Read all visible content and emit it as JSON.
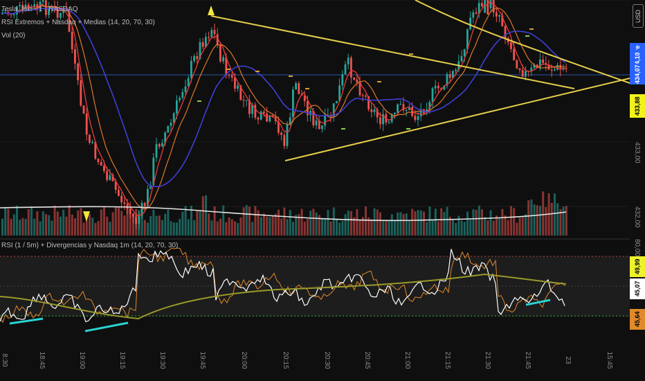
{
  "legends": {
    "symbol": "Tesla, Inc. · 1 · NASDAQ",
    "indicator": "RSI Extremos + Nasdaq + Medias (14, 20, 70, 30)",
    "volume": "Vol (20)",
    "rsi": "RSI (1 / 5m) + Divergencias y Nasdaq 1m (14, 20, 70, 30)"
  },
  "currency_button": "USD",
  "price_axis": {
    "labels": [
      "434,00",
      "433,00",
      "432,00"
    ],
    "tags": [
      {
        "text": "434,10",
        "bg": "#2962ff",
        "fg": "#ffffff"
      },
      {
        "text": "434,07",
        "bg": "#2962ff",
        "fg": "#ffffff"
      },
      {
        "text": "433,88",
        "bg": "#f2f21c",
        "fg": "#000000"
      }
    ],
    "pre_label": "Pre"
  },
  "rsi_axis": {
    "labels": [
      "80,00"
    ],
    "tags": [
      {
        "text": "49,99",
        "bg": "#eef22d",
        "fg": "#000000"
      },
      {
        "text": "45,07",
        "bg": "#ffffff",
        "fg": "#000000"
      },
      {
        "text": "45,64",
        "bg": "#e08a2a",
        "fg": "#000000"
      }
    ]
  },
  "time_axis": [
    "8:30",
    "18:45",
    "19:00",
    "19:15",
    "19:30",
    "19:45",
    "20:00",
    "20:15",
    "20:30",
    "20:45",
    "21:00",
    "21:15",
    "21:30",
    "21:45",
    "23",
    "15:45"
  ],
  "colors": {
    "up": "#26a69a",
    "down": "#ef5350",
    "trendline": "#e6cf4a",
    "ema_red": "#e03a3a",
    "ema_orange": "#e0782a",
    "sma_blue": "#3f3fd8",
    "rsi_white": "#ffffff",
    "rsi_orange": "#e08a2a",
    "rsi_olive": "#9a9a2a",
    "divergence": "#29d3d3"
  },
  "chart_data": {
    "type": "candlestick",
    "ylim": [
      431.5,
      434.9
    ],
    "rsi_levels": [
      70,
      50,
      30
    ]
  }
}
